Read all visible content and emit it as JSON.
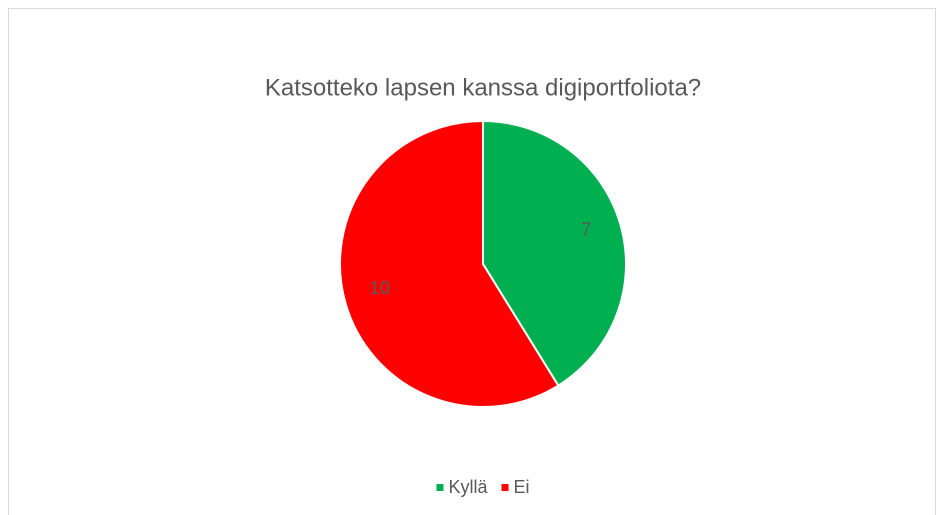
{
  "chart_data": {
    "type": "pie",
    "title": "Katsotteko lapsen kanssa digiportfoliota?",
    "categories": [
      "Kyllä",
      "Ei"
    ],
    "values": [
      7,
      10
    ],
    "colors": [
      "#00b050",
      "#ff0000"
    ],
    "legend": "bottom"
  }
}
